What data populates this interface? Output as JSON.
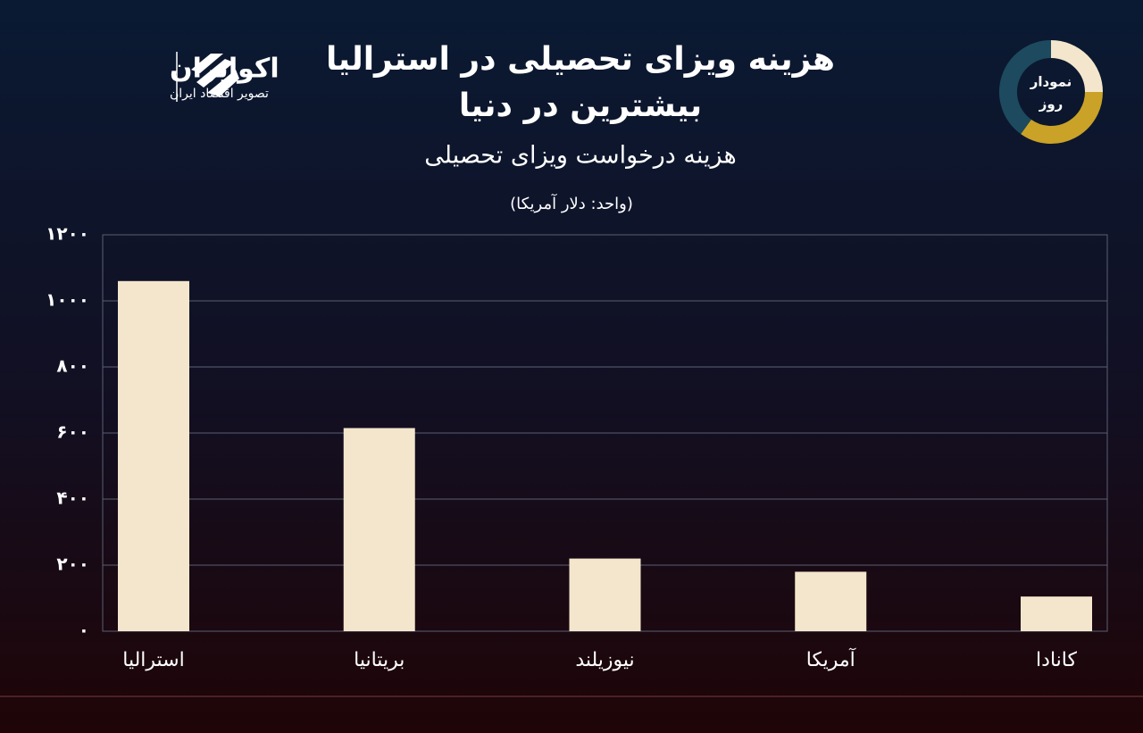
{
  "header": {
    "logo_name": "اکوایران",
    "logo_tagline": "تصویر اقتصاد ایران",
    "badge_lines": [
      "نمودار",
      "روز"
    ]
  },
  "chart_data": {
    "type": "bar",
    "title_lines": [
      "هزینه ویزای تحصیلی در استرالیا",
      "بیشترین در دنیا"
    ],
    "subtitle": "هزینه درخواست ویزای تحصیلی",
    "unit_note": "(واحد: دلار آمریکا)",
    "categories": [
      "استرالیا",
      "بریتانیا",
      "نیوزیلند",
      "آمریکا",
      "کانادا"
    ],
    "values": [
      1060,
      615,
      220,
      180,
      105
    ],
    "color": "#f3e6cc",
    "ylim": [
      0,
      1200
    ],
    "yticks": [
      {
        "value": 0,
        "label": "۰"
      },
      {
        "value": 200,
        "label": "۲۰۰"
      },
      {
        "value": 400,
        "label": "۴۰۰"
      },
      {
        "value": 600,
        "label": "۶۰۰"
      },
      {
        "value": 800,
        "label": "۸۰۰"
      },
      {
        "value": 1000,
        "label": "۱۰۰۰"
      },
      {
        "value": 1200,
        "label": "۱۲۰۰"
      }
    ],
    "grid": true
  }
}
